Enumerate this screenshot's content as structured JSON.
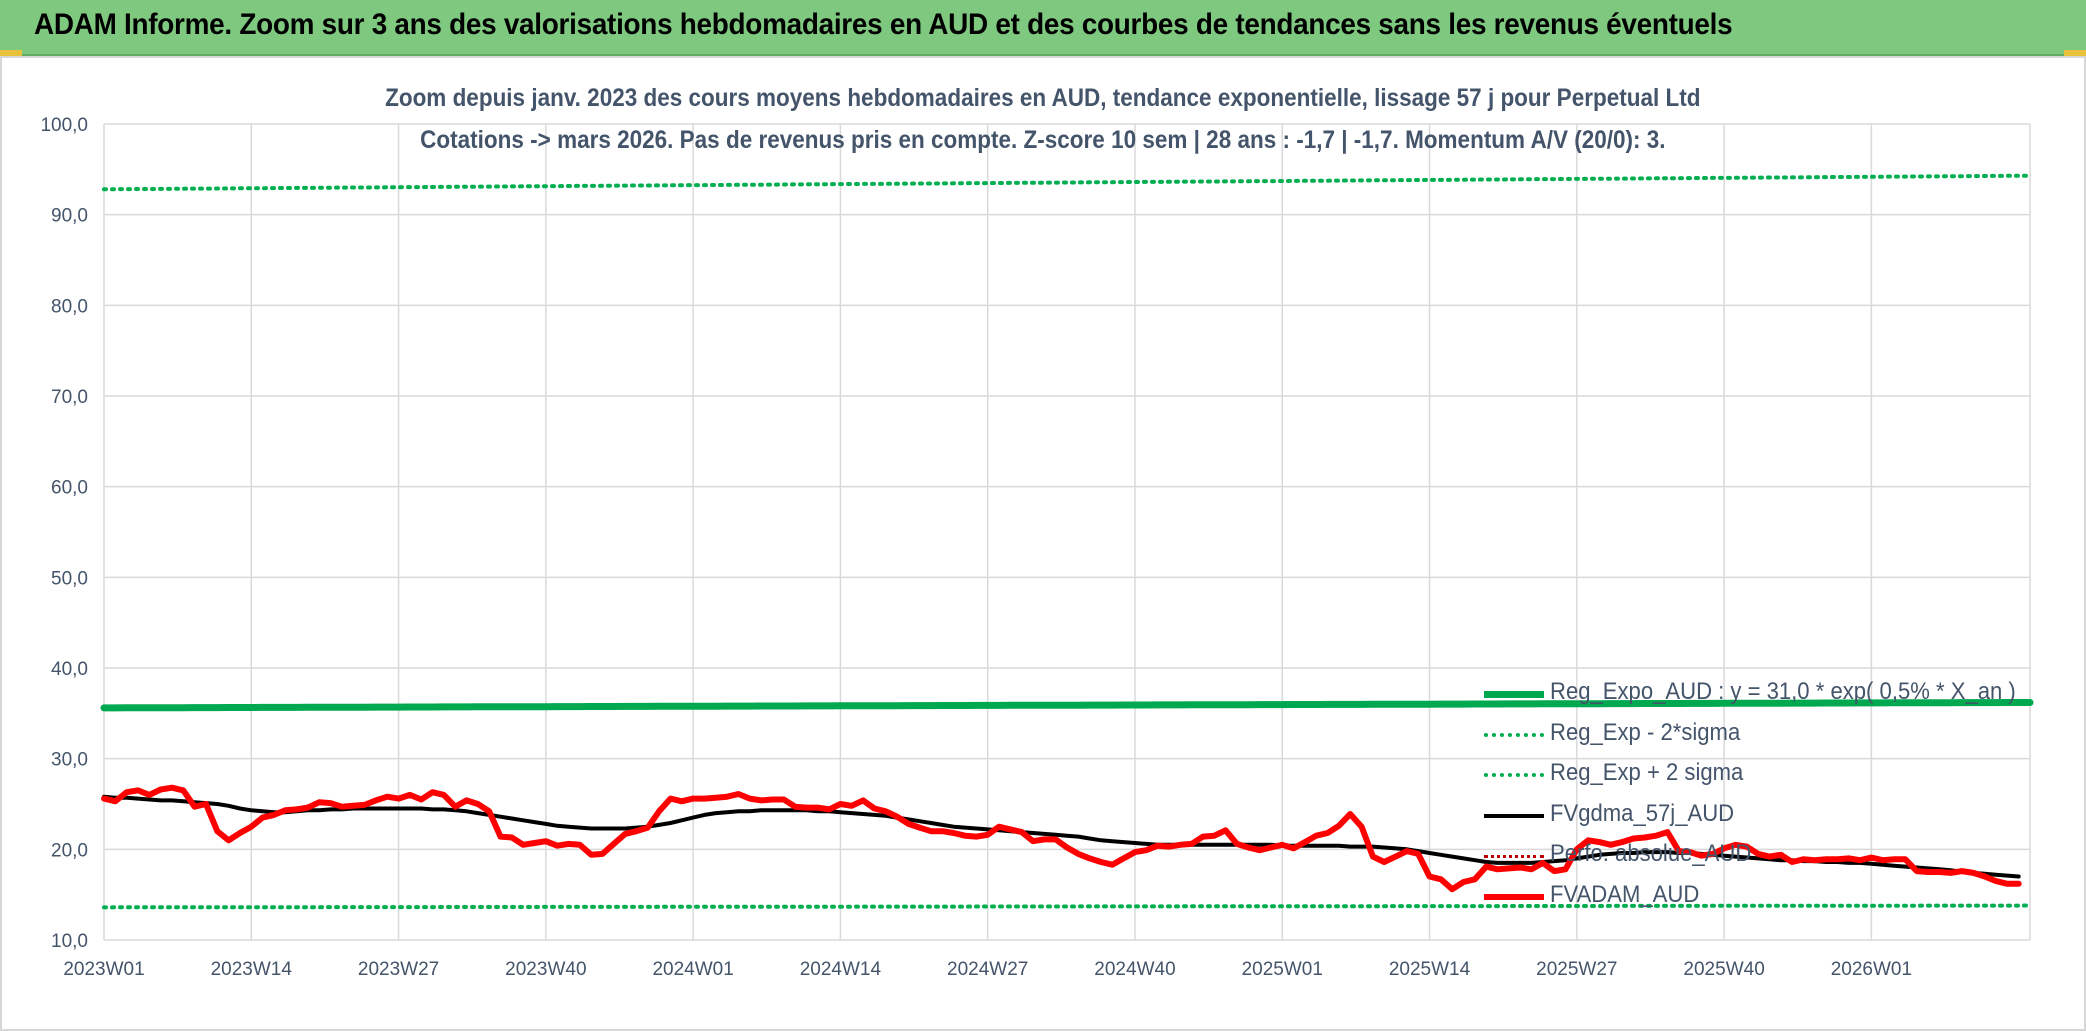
{
  "header": {
    "title": "ADAM Informe. Zoom sur 3 ans des valorisations hebdomadaires en AUD et des courbes de tendances sans les revenus éventuels"
  },
  "chart_data": {
    "type": "line",
    "title": "Zoom depuis janv. 2023 des cours moyens hebdomadaires en AUD, tendance exponentielle, lissage 57 j pour Perpetual Ltd",
    "subtitle": "Cotations -> mars 2026. Pas de revenus pris en compte. Z-score 10 sem | 28 ans : -1,7 | -1,7. Momentum A/V (20/0): 3.",
    "xlabel": "",
    "ylabel": "",
    "ylim": [
      10,
      100
    ],
    "yticks": [
      "100,0",
      "90,0",
      "80,0",
      "70,0",
      "60,0",
      "50,0",
      "40,0",
      "30,0",
      "20,0",
      "10,0"
    ],
    "ytick_values": [
      100,
      90,
      80,
      70,
      60,
      50,
      40,
      30,
      20,
      10
    ],
    "xticks": [
      "2023W01",
      "2023W14",
      "2023W27",
      "2023W40",
      "2024W01",
      "2024W14",
      "2024W27",
      "2024W40",
      "2025W01",
      "2025W14",
      "2025W27",
      "2025W40",
      "2026W01"
    ],
    "xtick_weeks": [
      0,
      13,
      26,
      39,
      52,
      65,
      78,
      91,
      104,
      117,
      130,
      143,
      156
    ],
    "x_week_count": 170,
    "grid": true,
    "legend_position": "bottom-right",
    "colors": {
      "reg_expo": "#00a84f",
      "sigma": "#00b050",
      "fvgdma": "#000000",
      "perfo": "#c00000",
      "fvadam": "#ff0000",
      "text": "#44546a",
      "grid": "#d9d9d9"
    },
    "series": [
      {
        "name": "Reg_Expo_AUD : y = 31,0 * exp( 0,5% * X_an )",
        "style": "solid-thick",
        "values_start_end": [
          35.6,
          36.2
        ]
      },
      {
        "name": "Reg_Exp - 2*sigma",
        "style": "dotted",
        "values_start_end": [
          13.6,
          13.8
        ]
      },
      {
        "name": "Reg_Exp + 2 sigma",
        "style": "dotted",
        "values_start_end": [
          92.8,
          94.3
        ]
      },
      {
        "name": "FVgdma_57j_AUD",
        "style": "solid",
        "values": [
          25.8,
          25.7,
          25.7,
          25.6,
          25.5,
          25.4,
          25.4,
          25.3,
          25.2,
          25.1,
          25.0,
          24.8,
          24.5,
          24.3,
          24.2,
          24.1,
          24.1,
          24.2,
          24.3,
          24.3,
          24.4,
          24.4,
          24.5,
          24.5,
          24.5,
          24.5,
          24.5,
          24.5,
          24.5,
          24.4,
          24.4,
          24.3,
          24.2,
          24.0,
          23.8,
          23.6,
          23.4,
          23.2,
          23.0,
          22.8,
          22.6,
          22.5,
          22.4,
          22.3,
          22.3,
          22.3,
          22.3,
          22.4,
          22.5,
          22.7,
          22.9,
          23.2,
          23.5,
          23.8,
          24.0,
          24.1,
          24.2,
          24.2,
          24.3,
          24.3,
          24.3,
          24.3,
          24.3,
          24.2,
          24.2,
          24.1,
          24.0,
          23.9,
          23.8,
          23.7,
          23.5,
          23.3,
          23.1,
          22.9,
          22.7,
          22.5,
          22.4,
          22.3,
          22.2,
          22.1,
          22.0,
          21.9,
          21.8,
          21.7,
          21.6,
          21.5,
          21.4,
          21.2,
          21.0,
          20.9,
          20.8,
          20.7,
          20.6,
          20.5,
          20.5,
          20.5,
          20.5,
          20.5,
          20.5,
          20.5,
          20.5,
          20.5,
          20.5,
          20.5,
          20.4,
          20.4,
          20.4,
          20.4,
          20.4,
          20.4,
          20.3,
          20.3,
          20.3,
          20.2,
          20.1,
          20.0,
          19.8,
          19.6,
          19.4,
          19.2,
          19.0,
          18.8,
          18.6,
          18.5,
          18.5,
          18.5,
          18.5,
          18.6,
          18.7,
          18.8,
          19.0,
          19.2,
          19.4,
          19.5,
          19.6,
          19.6,
          19.7,
          19.7,
          19.7,
          19.6,
          19.6,
          19.5,
          19.4,
          19.3,
          19.2,
          19.1,
          19.0,
          18.9,
          18.8,
          18.8,
          18.7,
          18.7,
          18.6,
          18.6,
          18.5,
          18.5,
          18.4,
          18.3,
          18.2,
          18.1,
          18.0,
          17.9,
          17.8,
          17.7,
          17.5,
          17.4,
          17.3,
          17.2,
          17.1,
          17.0
        ]
      },
      {
        "name": "Perfo. absolue_AUD",
        "style": "dotted",
        "values": []
      },
      {
        "name": "FVADAM_AUD",
        "style": "solid-thick",
        "values": [
          25.6,
          25.3,
          26.3,
          26.5,
          26.0,
          26.6,
          26.8,
          26.5,
          24.7,
          25.0,
          22.0,
          21.0,
          21.8,
          22.5,
          23.5,
          23.8,
          24.3,
          24.4,
          24.6,
          25.2,
          25.1,
          24.7,
          24.8,
          24.9,
          25.4,
          25.8,
          25.6,
          26.0,
          25.5,
          26.3,
          26.0,
          24.7,
          25.4,
          25.0,
          24.2,
          21.4,
          21.3,
          20.5,
          20.7,
          20.9,
          20.4,
          20.6,
          20.5,
          19.4,
          19.5,
          20.6,
          21.7,
          22.0,
          22.4,
          24.2,
          25.6,
          25.3,
          25.6,
          25.6,
          25.7,
          25.8,
          26.1,
          25.6,
          25.4,
          25.5,
          25.5,
          24.7,
          24.6,
          24.6,
          24.4,
          25.0,
          24.8,
          25.4,
          24.5,
          24.2,
          23.6,
          22.8,
          22.4,
          22.0,
          22.0,
          21.8,
          21.5,
          21.4,
          21.6,
          22.5,
          22.2,
          21.9,
          20.9,
          21.1,
          21.1,
          20.2,
          19.5,
          19.0,
          18.6,
          18.3,
          19.0,
          19.7,
          19.9,
          20.4,
          20.3,
          20.5,
          20.6,
          21.4,
          21.5,
          22.1,
          20.6,
          20.2,
          19.9,
          20.2,
          20.5,
          20.1,
          20.8,
          21.5,
          21.8,
          22.6,
          23.9,
          22.5,
          19.2,
          18.6,
          19.2,
          19.8,
          19.5,
          17.0,
          16.7,
          15.6,
          16.4,
          16.7,
          18.1,
          17.8,
          17.9,
          18.0,
          17.8,
          18.5,
          17.6,
          17.8,
          20.0,
          21.0,
          20.8,
          20.5,
          20.8,
          21.2,
          21.3,
          21.5,
          21.9,
          19.8,
          19.7,
          19.3,
          19.5,
          20.1,
          20.5,
          20.3,
          19.5,
          19.2,
          19.4,
          18.6,
          18.9,
          18.8,
          18.9,
          18.9,
          19.0,
          18.8,
          19.1,
          18.8,
          18.9,
          18.9,
          17.6,
          17.5,
          17.5,
          17.4,
          17.6,
          17.4,
          17.0,
          16.5,
          16.2,
          16.2
        ]
      }
    ]
  }
}
